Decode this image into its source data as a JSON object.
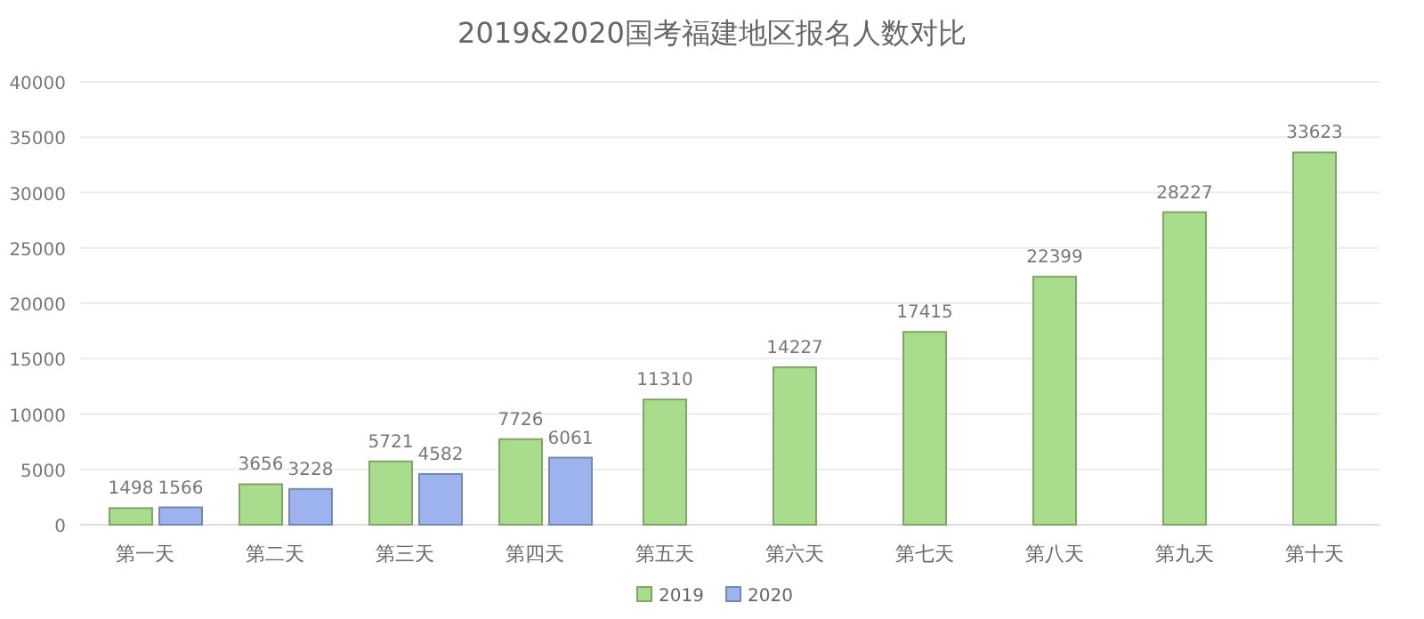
{
  "chart_data": {
    "type": "bar",
    "title": "2019&2020国考福建地区报名人数对比",
    "categories": [
      "第一天",
      "第二天",
      "第三天",
      "第四天",
      "第五天",
      "第六天",
      "第七天",
      "第八天",
      "第九天",
      "第十天"
    ],
    "series": [
      {
        "name": "2019",
        "color": "#a9dc8c",
        "values": [
          1498,
          3656,
          5721,
          7726,
          11310,
          14227,
          17415,
          22399,
          28227,
          33623
        ]
      },
      {
        "name": "2020",
        "color": "#9db3ee",
        "values": [
          1566,
          3228,
          4582,
          6061,
          null,
          null,
          null,
          null,
          null,
          null
        ]
      }
    ],
    "ylim": [
      0,
      40000
    ],
    "yticks": [
      0,
      5000,
      10000,
      15000,
      20000,
      25000,
      30000,
      35000,
      40000
    ],
    "grid": "y",
    "legend": "bottom",
    "data_labels": true
  }
}
